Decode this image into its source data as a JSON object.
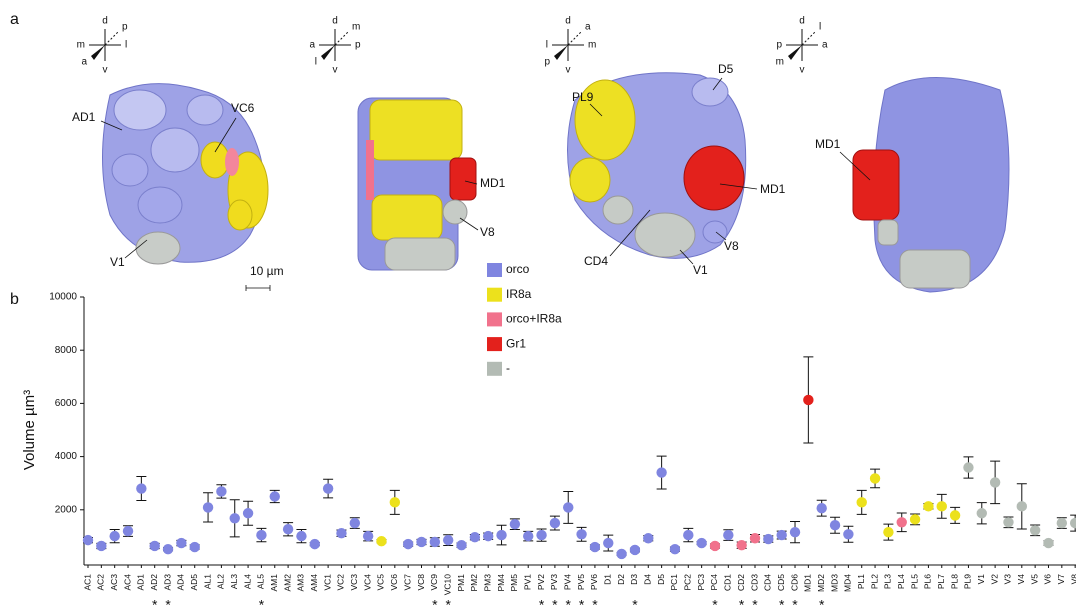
{
  "panel_a": {
    "label": "a",
    "views": [
      {
        "axes": {
          "top": "d",
          "upper_right": "p",
          "left": "m",
          "right": "l",
          "lower_left": "a",
          "bottom": "v"
        },
        "labels": [
          "AD1",
          "VC6",
          "V1"
        ]
      },
      {
        "axes": {
          "top": "d",
          "upper_right": "m",
          "left": "a",
          "right": "p",
          "lower_left": "l",
          "bottom": "v"
        },
        "labels": [
          "MD1",
          "V8"
        ]
      },
      {
        "axes": {
          "top": "d",
          "upper_right": "a",
          "left": "l",
          "right": "m",
          "lower_left": "p",
          "bottom": "v"
        },
        "labels": [
          "PL9",
          "D5",
          "MD1",
          "CD4",
          "V1",
          "V8"
        ]
      },
      {
        "axes": {
          "top": "d",
          "upper_right": "l",
          "left": "p",
          "right": "a",
          "lower_left": "m",
          "bottom": "v"
        },
        "labels": [
          "MD1"
        ]
      }
    ],
    "scale_bar": "10 µm"
  },
  "chart_data": {
    "type": "scatter",
    "panel_label": "b",
    "y_label": "Volume µm³",
    "categories": [
      "AC1",
      "AC2",
      "AC3",
      "AC4",
      "AD1",
      "AD2",
      "AD3",
      "AD4",
      "AD5",
      "AL1",
      "AL2",
      "AL3",
      "AL4",
      "AL5",
      "AM1",
      "AM2",
      "AM3",
      "AM4",
      "VC1",
      "VC2",
      "VC3",
      "VC4",
      "VC5",
      "VC6",
      "VC7",
      "VC8",
      "VC9",
      "VC10",
      "PM1",
      "PM2",
      "PM3",
      "PM4",
      "PM5",
      "PV1",
      "PV2",
      "PV3",
      "PV4",
      "PV5",
      "PV6",
      "D1",
      "D2",
      "D3",
      "D4",
      "D5",
      "PC1",
      "PC2",
      "PC3",
      "PC4",
      "CD1",
      "CD2",
      "CD3",
      "CD4",
      "CD5",
      "CD6",
      "MD1",
      "MD2",
      "MD3",
      "MD4",
      "PL1",
      "PL2",
      "PL3",
      "PL4",
      "PL5",
      "PL6",
      "PL7",
      "PL8",
      "PL9",
      "V1",
      "V2",
      "V3",
      "V4",
      "V5",
      "V6",
      "V7",
      "V8"
    ],
    "values": [
      860,
      640,
      1010,
      1200,
      2800,
      640,
      520,
      750,
      600,
      2090,
      2690,
      1680,
      1870,
      1050,
      2500,
      1270,
      1010,
      710,
      2800,
      1120,
      1500,
      1010,
      820,
      2280,
      710,
      790,
      790,
      860,
      670,
      970,
      1010,
      1050,
      1460,
      1010,
      1050,
      1500,
      2090,
      1080,
      600,
      750,
      340,
      490,
      930,
      3400,
      520,
      1050,
      750,
      640,
      1050,
      670,
      930,
      900,
      1050,
      1160,
      6130,
      2060,
      1420,
      1080,
      2280,
      3180,
      1160,
      1530,
      1640,
      2130,
      2130,
      1790,
      3590,
      1870,
      3030,
      1530,
      2130,
      1230,
      750,
      1500,
      1500
    ],
    "errors": [
      100,
      100,
      250,
      200,
      450,
      100,
      60,
      100,
      80,
      550,
      250,
      700,
      450,
      250,
      230,
      250,
      250,
      60,
      350,
      120,
      200,
      180,
      60,
      450,
      80,
      100,
      160,
      200,
      80,
      100,
      120,
      370,
      200,
      180,
      230,
      260,
      600,
      260,
      80,
      300,
      50,
      70,
      100,
      620,
      80,
      250,
      60,
      80,
      200,
      120,
      140,
      120,
      150,
      400,
      1620,
      300,
      300,
      300,
      450,
      350,
      300,
      350,
      200,
      100,
      450,
      300,
      400,
      400,
      800,
      200,
      850,
      200,
      80,
      200,
      300
    ],
    "groups": [
      0,
      0,
      0,
      0,
      0,
      0,
      0,
      0,
      0,
      0,
      0,
      0,
      0,
      0,
      0,
      0,
      0,
      0,
      0,
      0,
      0,
      0,
      1,
      1,
      0,
      0,
      0,
      0,
      0,
      0,
      0,
      0,
      0,
      0,
      0,
      0,
      0,
      0,
      0,
      0,
      0,
      0,
      0,
      0,
      0,
      0,
      0,
      2,
      0,
      2,
      2,
      0,
      0,
      0,
      3,
      0,
      0,
      0,
      1,
      1,
      1,
      2,
      1,
      1,
      1,
      1,
      4,
      4,
      4,
      4,
      4,
      4,
      4,
      4,
      4
    ],
    "annotations": [
      null,
      null,
      null,
      null,
      null,
      "*",
      "*",
      null,
      null,
      null,
      null,
      null,
      null,
      "*",
      null,
      null,
      null,
      null,
      null,
      null,
      null,
      null,
      null,
      null,
      null,
      null,
      "*",
      "*",
      null,
      null,
      null,
      null,
      null,
      null,
      "*",
      "*",
      "*",
      "*",
      "*",
      null,
      null,
      "*",
      null,
      null,
      null,
      null,
      null,
      "*",
      null,
      "*",
      "*",
      null,
      "*",
      "*",
      null,
      "*",
      null,
      null,
      null,
      null,
      null,
      null,
      null,
      null,
      null,
      null,
      null,
      null,
      null,
      null,
      null,
      null,
      null,
      null,
      null
    ],
    "legend": [
      {
        "name": "orco",
        "color": "#7f85e0"
      },
      {
        "name": "IR8a",
        "color": "#ece11c"
      },
      {
        "name": "orco+IR8a",
        "color": "#f1728c"
      },
      {
        "name": "Gr1",
        "color": "#e3211c"
      },
      {
        "name": "-",
        "color": "#b3bbb4"
      }
    ],
    "ylim": [
      0,
      10000
    ],
    "yticks": [
      2000,
      4000,
      6000,
      8000,
      10000
    ]
  }
}
